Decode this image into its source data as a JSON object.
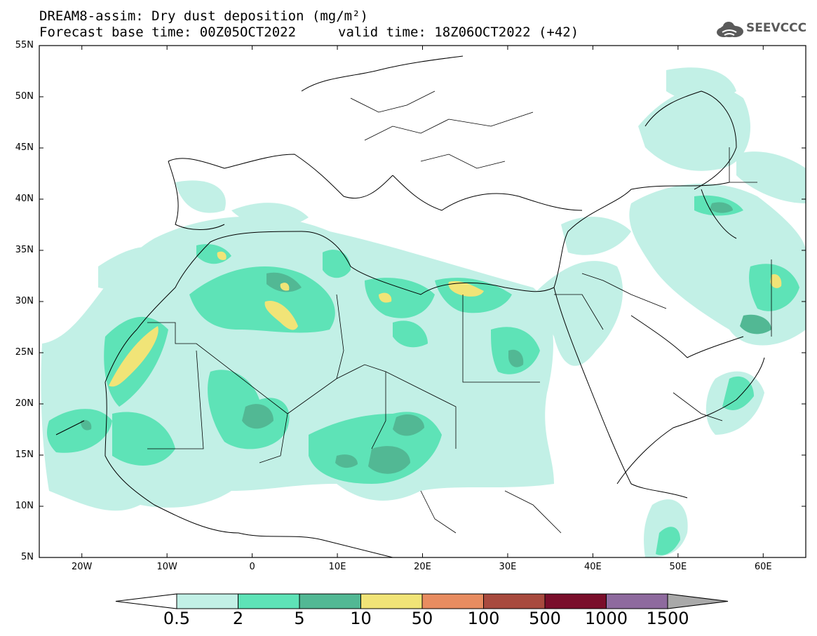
{
  "title": {
    "line1": "DREAM8-assim: Dry dust deposition (mg/m²)",
    "line2": "Forecast base time: 00Z05OCT2022",
    "line2b": "valid time: 18Z06OCT2022 (+42)"
  },
  "logo": {
    "icon": "cloud-icon",
    "text": "SEEVCCC"
  },
  "map": {
    "lon_range": [
      -25,
      65
    ],
    "lat_range": [
      5,
      55
    ],
    "lat_ticks": [
      "55N",
      "50N",
      "45N",
      "40N",
      "35N",
      "30N",
      "25N",
      "20N",
      "15N",
      "10N",
      "5N"
    ],
    "lon_ticks": [
      "20W",
      "10W",
      "0",
      "10E",
      "20E",
      "30E",
      "40E",
      "50E",
      "60E"
    ],
    "background": "#ffffff",
    "coastline_color": "#000000"
  },
  "colorbar": {
    "labels": [
      "0.5",
      "2",
      "5",
      "10",
      "50",
      "100",
      "500",
      "1000",
      "1500"
    ],
    "colors": [
      "#c2f0e6",
      "#5ee3b7",
      "#52b894",
      "#f1e477",
      "#e88c60",
      "#a84a3e",
      "#7a0e2b",
      "#8e6a9e"
    ],
    "under_color": "#ffffff",
    "over_color": "#a9a9a9"
  }
}
